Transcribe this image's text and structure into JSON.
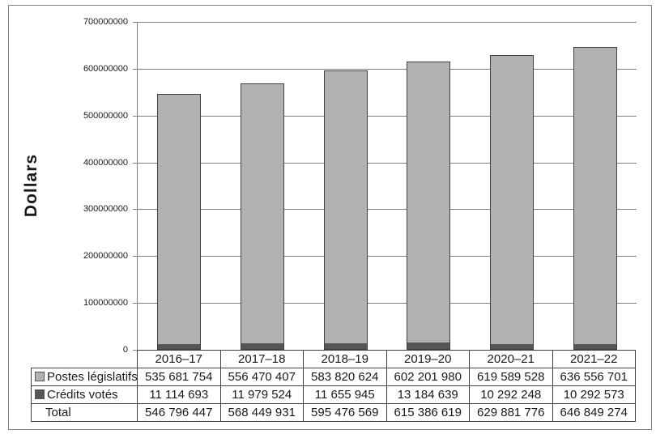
{
  "chart_data": {
    "type": "bar",
    "stacked": true,
    "ylabel": "Dollars",
    "categories": [
      "2016–17",
      "2017–18",
      "2018–19",
      "2019–20",
      "2020–21",
      "2021–22"
    ],
    "series": [
      {
        "name": "Postes législatifs",
        "color": "#b2b2b2",
        "stack_position": "top",
        "values": [
          535681754,
          556470407,
          583820624,
          602201980,
          619589528,
          636556701
        ],
        "display": [
          "535 681 754",
          "556 470 407",
          "583 820 624",
          "602 201 980",
          "619 589 528",
          "636 556 701"
        ]
      },
      {
        "name": "Crédits votés",
        "color": "#555555",
        "stack_position": "bottom",
        "values": [
          11114693,
          11979524,
          11655945,
          13184639,
          10292248,
          10292573
        ],
        "display": [
          "11 114 693",
          "11 979 524",
          "11 655 945",
          "13 184 639",
          "10 292 248",
          "10 292 573"
        ]
      }
    ],
    "totals": {
      "label": "Total",
      "values": [
        546796447,
        568449931,
        595476569,
        615386619,
        629881776,
        646849274
      ],
      "display": [
        "546 796 447",
        "568 449 931",
        "595 476 569",
        "615 386 619",
        "629 881 776",
        "646 849 274"
      ]
    },
    "ylim": [
      0,
      700000000
    ],
    "ytick_step": 100000000,
    "ytick_labels": [
      "0",
      "100000000",
      "200000000",
      "300000000",
      "400000000",
      "500000000",
      "600000000",
      "700000000"
    ],
    "grid": true,
    "legend_position": "table-rows",
    "colors": {
      "grid": "#808080",
      "axis": "#808080",
      "bar_border": "#404040",
      "table_border": "#404040",
      "frame_border": "#808080",
      "text": "#1a1a1a"
    }
  }
}
